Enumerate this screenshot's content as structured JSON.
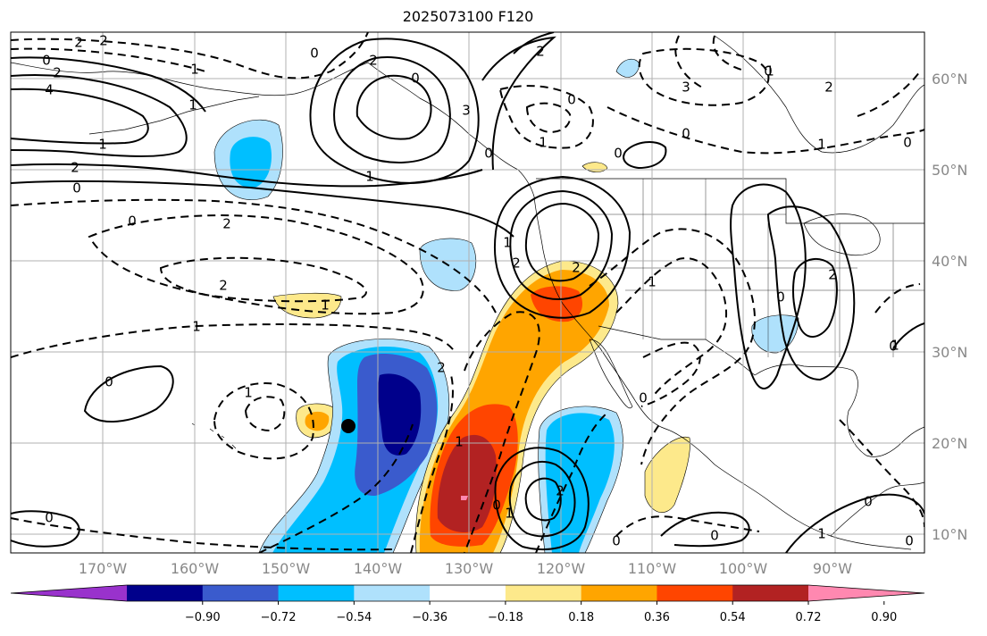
{
  "title": "2025073100 F120",
  "lat_labels": [
    "60°N",
    "50°N",
    "40°N",
    "30°N",
    "20°N",
    "10°N"
  ],
  "lon_labels": [
    "170°W",
    "160°W",
    "150°W",
    "140°W",
    "130°W",
    "120°W",
    "110°W",
    "100°W",
    "90°W"
  ],
  "colorbar": {
    "ticks": [
      "−0.90",
      "−0.72",
      "−0.54",
      "−0.36",
      "−0.18",
      "0.18",
      "0.36",
      "0.54",
      "0.72",
      "0.90"
    ],
    "colors": [
      "#9932cc",
      "#00008b",
      "#3a5bcd",
      "#00bfff",
      "#afe1fc",
      "#ffffff",
      "#fde98b",
      "#ffa500",
      "#ff4500",
      "#b22222",
      "#ff88b0"
    ]
  },
  "colors": {
    "grid": "#b0b0b0",
    "coast": "#000000",
    "contour": "#000000",
    "tick_text": "#888888"
  },
  "contour_labels": {
    "solid": [
      "0",
      "1",
      "2",
      "4",
      "1",
      "2",
      "0",
      "3",
      "2",
      "0",
      "1",
      "0",
      "0",
      "1",
      "2",
      "1",
      "2",
      "0",
      "1",
      "0",
      "0",
      "2",
      "1",
      "0",
      "0",
      "0",
      "1",
      "0"
    ],
    "dashed": [
      "2",
      "2",
      "0",
      "1",
      "1",
      "0",
      "2",
      "0",
      "2",
      "1",
      "0",
      "1",
      "0",
      "3",
      "2",
      "1",
      "2",
      "0",
      "1",
      "2",
      "0",
      "0",
      "1",
      "2",
      "1",
      "0"
    ]
  },
  "marker": "typhoon-center-dot"
}
